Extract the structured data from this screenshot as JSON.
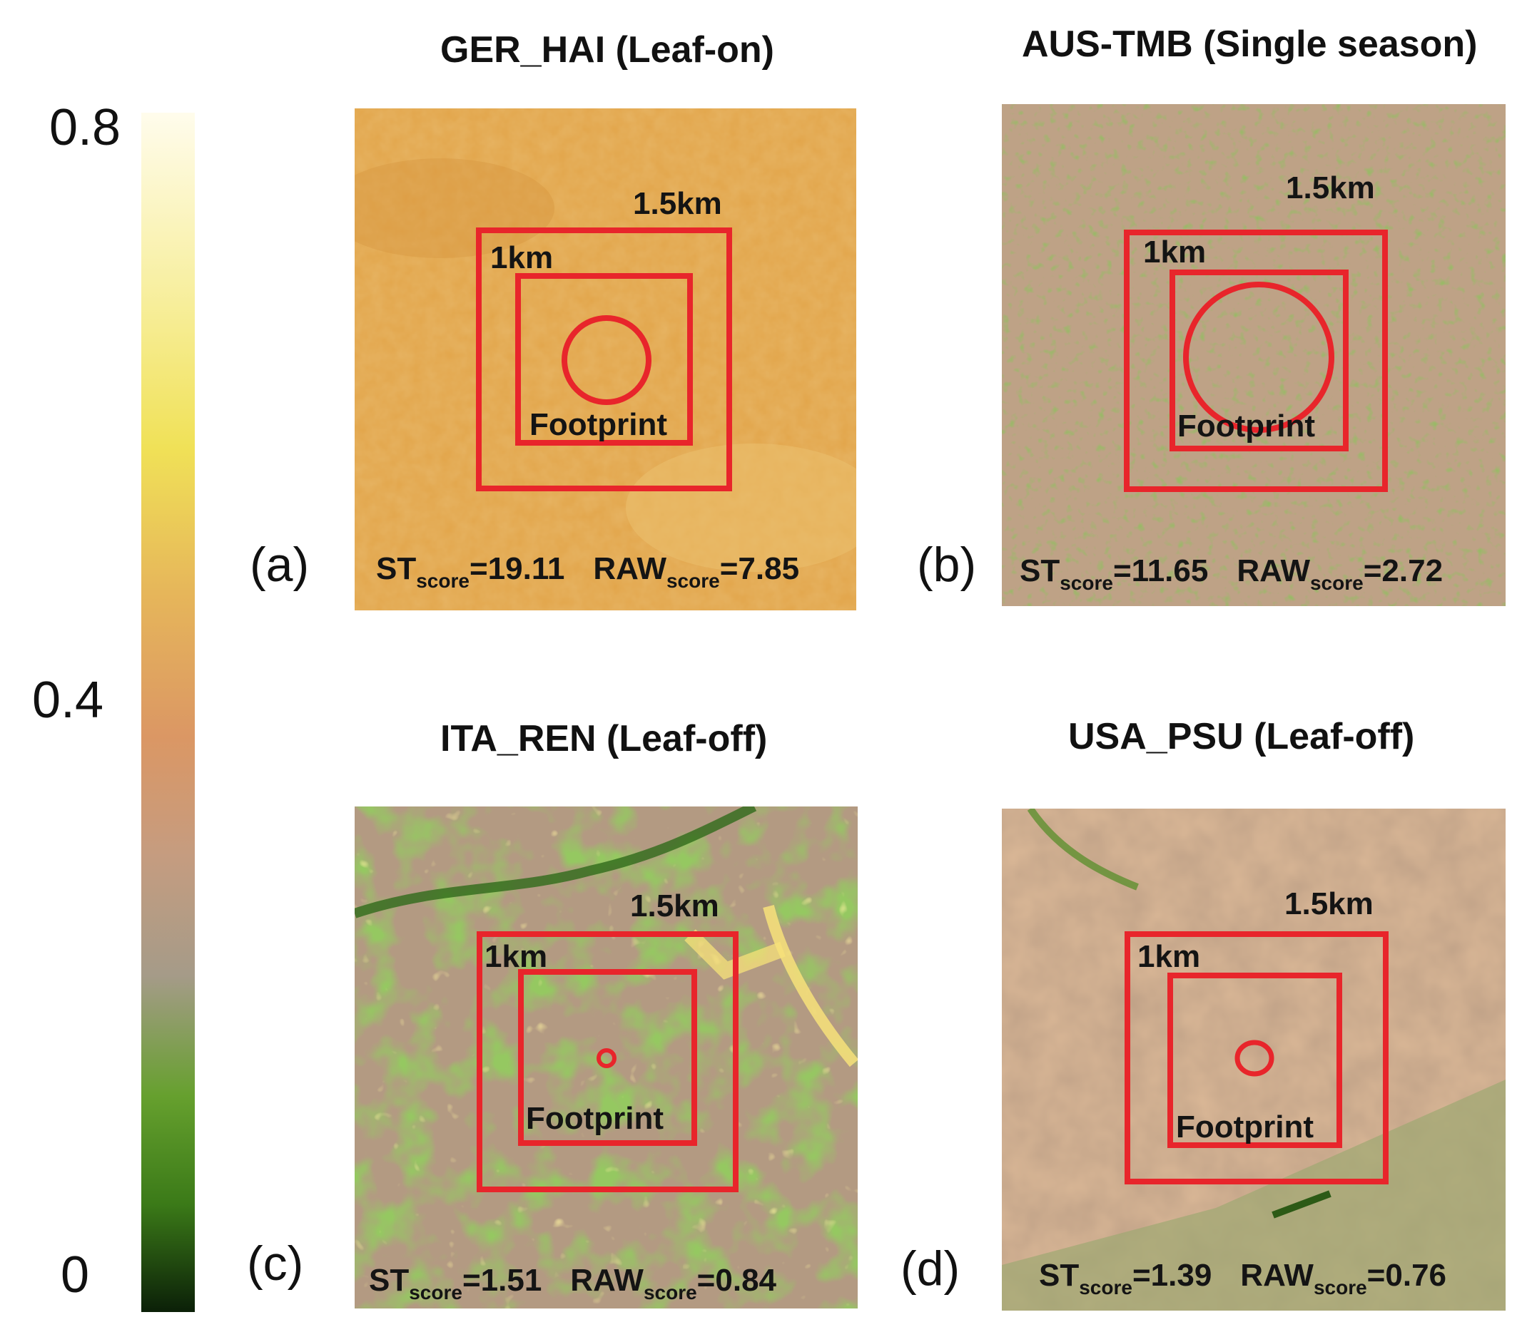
{
  "colorbar": {
    "ticks": [
      "0.8",
      "0.4",
      "0"
    ],
    "range": [
      0,
      0.8
    ]
  },
  "panels": [
    {
      "letter": "(a)",
      "title": "GER_HAI (Leaf-on)",
      "labels": {
        "outer": "1.5km",
        "inner": "1km",
        "footprint": "Footprint"
      },
      "st_prefix": "ST",
      "st_sub": "score",
      "st_value": "=19.11",
      "raw_prefix": "RAW",
      "raw_sub": "score",
      "raw_value": "=7.85"
    },
    {
      "letter": "(b)",
      "title": "AUS-TMB (Single season)",
      "labels": {
        "outer": "1.5km",
        "inner": "1km",
        "footprint": "Footprint"
      },
      "st_prefix": "ST",
      "st_sub": "score",
      "st_value": "=11.65",
      "raw_prefix": "RAW",
      "raw_sub": "score",
      "raw_value": "=2.72"
    },
    {
      "letter": "(c)",
      "title": "ITA_REN (Leaf-off)",
      "labels": {
        "outer": "1.5km",
        "inner": "1km",
        "footprint": "Footprint"
      },
      "st_prefix": "ST",
      "st_sub": "score",
      "st_value": "=1.51",
      "raw_prefix": "RAW",
      "raw_sub": "score",
      "raw_value": "=0.84"
    },
    {
      "letter": "(d)",
      "title": "USA_PSU (Leaf-off)",
      "labels": {
        "outer": "1.5km",
        "inner": "1km",
        "footprint": "Footprint"
      },
      "st_prefix": "ST",
      "st_sub": "score",
      "st_value": "=1.39",
      "raw_prefix": "RAW",
      "raw_sub": "score",
      "raw_value": "=0.76"
    }
  ],
  "colors": {
    "box": "#e8252b",
    "colorbar_top": "#fffbe6",
    "colorbar_mid": "#d9956a",
    "colorbar_low": "#4c8f1c",
    "colorbar_bottom": "#0d2208"
  }
}
